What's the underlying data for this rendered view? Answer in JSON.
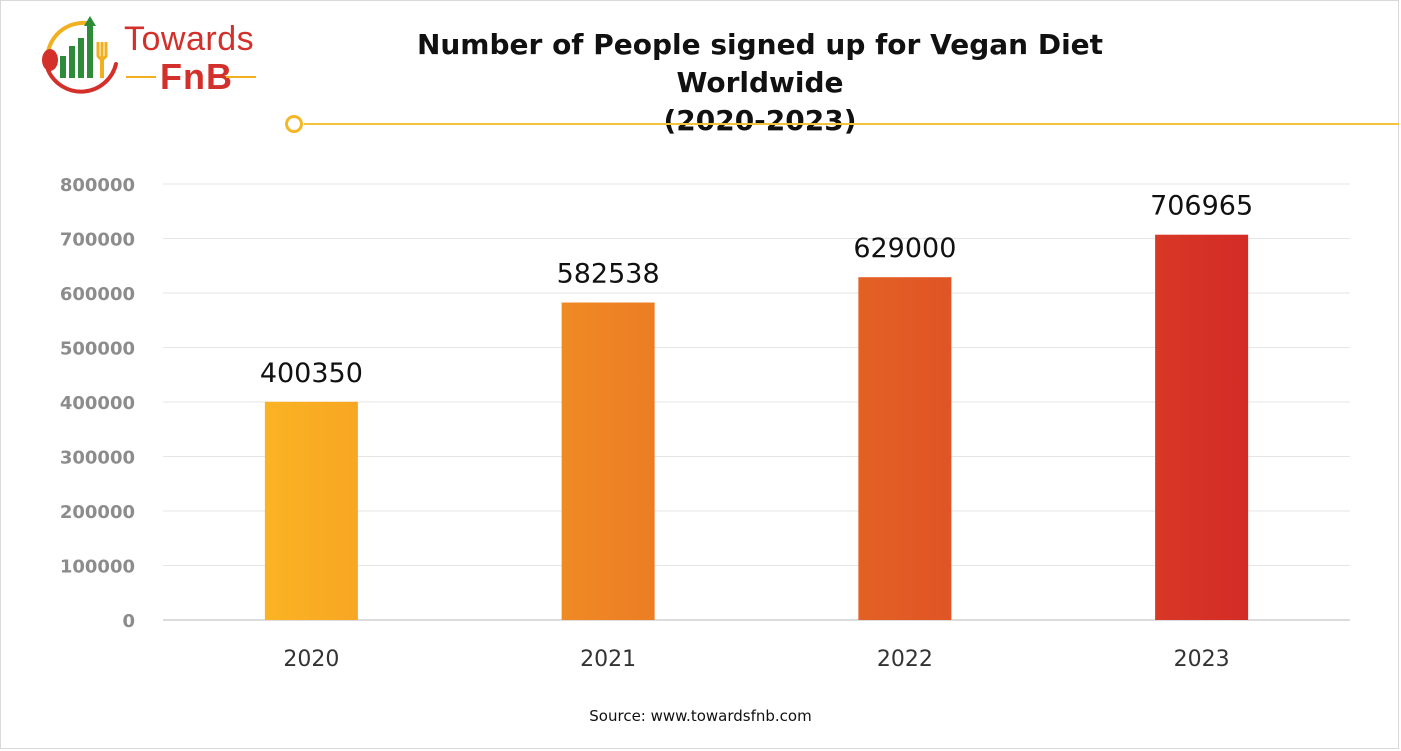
{
  "logo": {
    "line1": "Towards",
    "line2": "FnB"
  },
  "colors": {
    "bar_start": "#fbb323",
    "bar_end": "#d42b26",
    "title_line": "#f3c43a"
  },
  "source": "Source: www.towardsfnb.com",
  "chart_data": {
    "type": "bar",
    "title": "Number of People signed up for Vegan Diet Worldwide (2020-2023)",
    "title_lines": [
      "Number of People signed up for Vegan Diet Worldwide",
      "(2020-2023)"
    ],
    "categories": [
      "2020",
      "2021",
      "2022",
      "2023"
    ],
    "values": [
      400350,
      582538,
      629000,
      706965
    ],
    "bar_colors": [
      "#fbb323",
      "#ef8a25",
      "#e45a26",
      "#d42b26"
    ],
    "ylim": [
      0,
      800000
    ],
    "yticks": [
      0,
      100000,
      200000,
      300000,
      400000,
      500000,
      600000,
      700000,
      800000
    ],
    "xlabel": "",
    "ylabel": "",
    "grid": true,
    "legend": "none"
  }
}
